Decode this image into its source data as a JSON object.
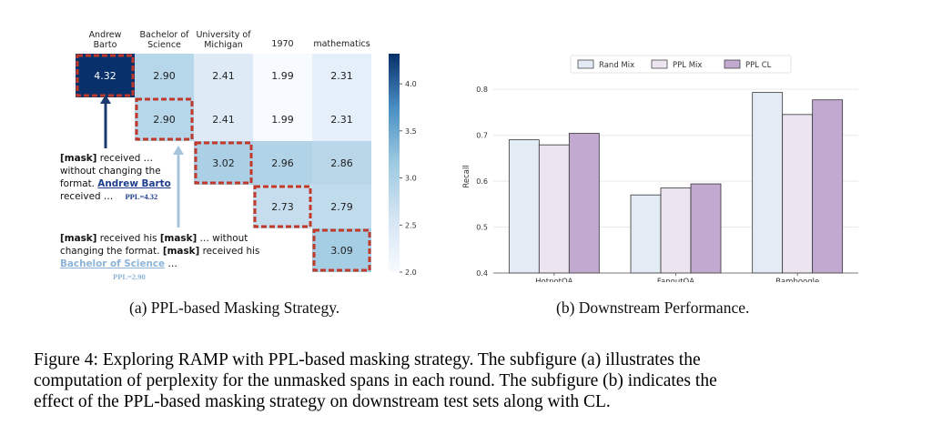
{
  "figure_a": {
    "columns": [
      "Andrew\nBarto",
      "Bachelor of\nScience",
      "University of\nMichigan",
      "1970",
      "mathematics"
    ],
    "matrix": [
      [
        4.32,
        2.9,
        2.41,
        1.99,
        2.31
      ],
      [
        null,
        2.9,
        2.41,
        1.99,
        2.31
      ],
      [
        null,
        null,
        3.02,
        2.96,
        2.86
      ],
      [
        null,
        null,
        null,
        2.73,
        2.79
      ],
      [
        null,
        null,
        null,
        null,
        3.09
      ]
    ],
    "cell_labels": [
      [
        "4.32",
        "2.90",
        "2.41",
        "1.99",
        "2.31"
      ],
      [
        "",
        "2.90",
        "2.41",
        "1.99",
        "2.31"
      ],
      [
        "",
        "",
        "3.02",
        "2.96",
        "2.86"
      ],
      [
        "",
        "",
        "",
        "2.73",
        "2.79"
      ],
      [
        "",
        "",
        "",
        "",
        "3.09"
      ]
    ],
    "boxed_cells": [
      [
        0,
        0
      ],
      [
        1,
        1
      ],
      [
        2,
        2
      ],
      [
        3,
        3
      ],
      [
        4,
        4
      ]
    ],
    "colorbar": {
      "min": 2.0,
      "max": 4.32,
      "ticks": [
        "4.0",
        "3.5",
        "3.0",
        "2.5",
        "2.0"
      ],
      "tick_values": [
        4.0,
        3.5,
        3.0,
        2.5,
        2.0
      ]
    },
    "annotation1": {
      "mask1": "[mask]",
      "t1": " received …",
      "t2": "without changing the",
      "t3": "format. ",
      "name": "Andrew Barto",
      "t4": "received …",
      "ppl": "PPL=4.32"
    },
    "annotation2": {
      "mask1": "[mask]",
      "t1": " received his ",
      "mask2": "[mask]",
      "t2": " … without",
      "t3": "changing the format. ",
      "mask3": "[mask]",
      "t4": " received his",
      "name": "Bachelor of Science",
      "t5": " …",
      "ppl": "PPL=2.90"
    },
    "subcaption": "(a) PPL-based Masking Strategy."
  },
  "chart_data": {
    "type": "bar",
    "categories": [
      "HotpotQA",
      "FanoutQA",
      "Bamboogle"
    ],
    "series": [
      {
        "name": "Rand Mix",
        "values": [
          0.69,
          0.57,
          0.793
        ],
        "color": "#e3ecf5"
      },
      {
        "name": "PPL Mix",
        "values": [
          0.679,
          0.585,
          0.745
        ],
        "color": "#ece4f0"
      },
      {
        "name": "PPL CL",
        "values": [
          0.704,
          0.594,
          0.777
        ],
        "color": "#c1a9d0"
      }
    ],
    "xlabel": "",
    "ylabel": "Recall",
    "ylim": [
      0.4,
      0.82
    ],
    "yticks": [
      "0.4",
      "0.5",
      "0.6",
      "0.7",
      "0.8"
    ],
    "ytick_values": [
      0.4,
      0.5,
      0.6,
      0.7,
      0.8
    ],
    "grid": true,
    "legend": "top-center"
  },
  "figure_b": {
    "subcaption": "(b) Downstream Performance."
  },
  "caption": {
    "line1": "Figure 4:  Exploring RAMP with PPL-based masking strategy.  The subfigure (a) illustrates the",
    "line2": "computation of perplexity for the unmasked spans in each round. The subfigure (b) indicates the",
    "line3": "effect of the PPL-based masking strategy on downstream test sets along with CL."
  }
}
